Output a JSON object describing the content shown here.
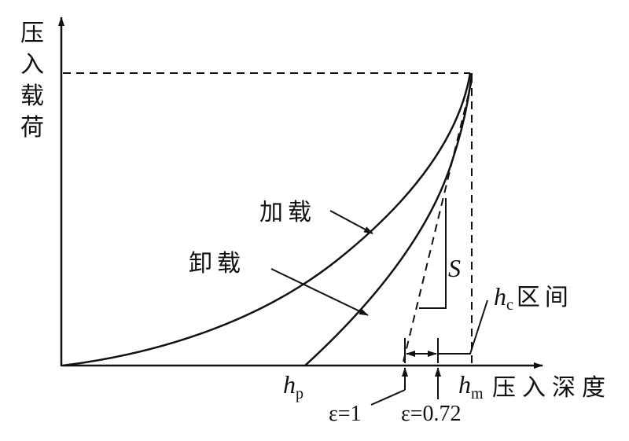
{
  "y_axis_label": [
    "压",
    "入",
    "载",
    "荷"
  ],
  "x_axis_label": "压入深度",
  "loading_label": "加载",
  "unloading_label": "卸载",
  "stiffness_label": "S",
  "hp": {
    "main": "h",
    "sub": "p"
  },
  "hm": {
    "main": "h",
    "sub": "m"
  },
  "hc": {
    "main": "h",
    "sub": "c",
    "suffix": "区间"
  },
  "epsilon_1": "ε=1",
  "epsilon_072": "ε=0.72"
}
